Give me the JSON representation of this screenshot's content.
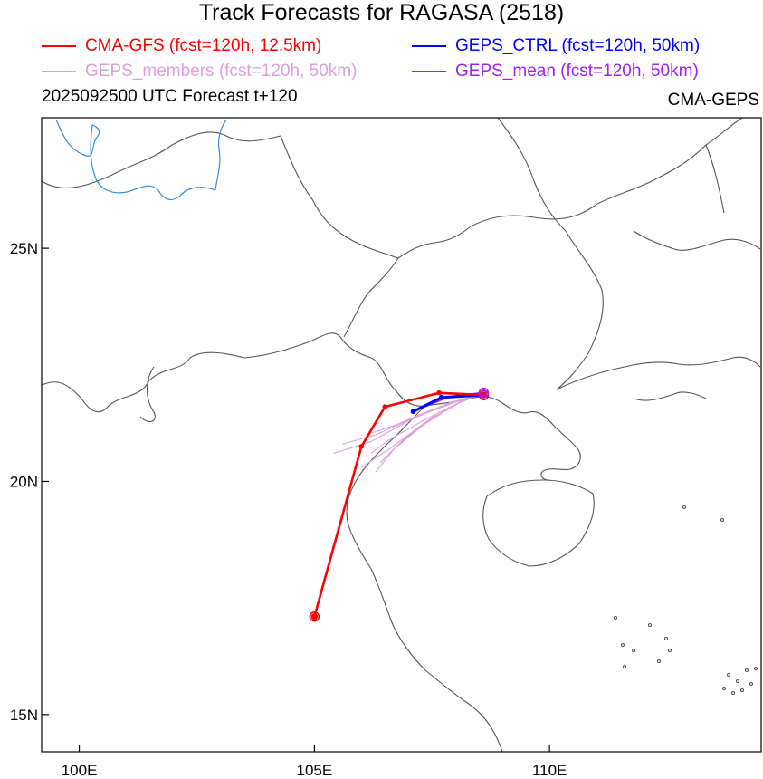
{
  "title": "Track Forecasts for RAGASA (2518)",
  "subtitle": "2025092500 UTC Forecast t+120",
  "model_label": "CMA-GEPS",
  "legend": [
    {
      "label": "CMA-GFS (fcst=120h, 12.5km)",
      "color": "#ff0000"
    },
    {
      "label": "GEPS_CTRL (fcst=120h, 50km)",
      "color": "#0000ff"
    },
    {
      "label": "GEPS_members (fcst=120h, 50km)",
      "color": "#dda0dd"
    },
    {
      "label": "GEPS_mean (fcst=120h, 50km)",
      "color": "#a020f0"
    }
  ],
  "axes": {
    "lon_ticks": [
      "100E",
      "105E",
      "110E"
    ],
    "lat_ticks": [
      "25N",
      "20N",
      "15N"
    ]
  },
  "chart_data": {
    "type": "map",
    "lon_range": [
      99.2,
      114.5
    ],
    "lat_range": [
      14.2,
      27.8
    ],
    "tracks": {
      "cma_gfs": [
        [
          105.0,
          17.1
        ],
        [
          106.0,
          20.75
        ],
        [
          106.5,
          21.6
        ],
        [
          107.65,
          21.9
        ],
        [
          108.6,
          21.85
        ]
      ],
      "geps_ctrl": [
        [
          107.1,
          21.5
        ],
        [
          107.7,
          21.8
        ],
        [
          108.55,
          21.85
        ]
      ],
      "geps_mean": [
        [
          107.2,
          21.55
        ],
        [
          107.8,
          21.8
        ],
        [
          108.6,
          21.9
        ]
      ],
      "geps_members": [
        [
          [
            106.2,
            20.6
          ],
          [
            106.6,
            20.9
          ],
          [
            107.3,
            21.3
          ],
          [
            108.1,
            21.7
          ],
          [
            108.6,
            21.9
          ]
        ],
        [
          [
            106.4,
            20.4
          ],
          [
            106.8,
            20.8
          ],
          [
            107.5,
            21.35
          ],
          [
            108.2,
            21.75
          ],
          [
            108.65,
            21.95
          ]
        ],
        [
          [
            105.6,
            20.8
          ],
          [
            106.3,
            21.0
          ],
          [
            107.2,
            21.4
          ],
          [
            108.0,
            21.7
          ],
          [
            108.55,
            21.85
          ]
        ],
        [
          [
            106.5,
            20.5
          ],
          [
            106.9,
            20.9
          ],
          [
            107.6,
            21.45
          ],
          [
            108.3,
            21.8
          ],
          [
            108.7,
            21.9
          ]
        ],
        [
          [
            106.1,
            21.0
          ],
          [
            106.7,
            21.2
          ],
          [
            107.4,
            21.5
          ],
          [
            108.1,
            21.75
          ],
          [
            108.6,
            21.88
          ]
        ],
        [
          [
            105.4,
            20.6
          ],
          [
            106.2,
            20.85
          ],
          [
            107.0,
            21.3
          ],
          [
            107.9,
            21.7
          ],
          [
            108.5,
            21.85
          ]
        ],
        [
          [
            106.3,
            20.2
          ],
          [
            106.7,
            20.7
          ],
          [
            107.3,
            21.2
          ],
          [
            108.0,
            21.65
          ],
          [
            108.6,
            21.9
          ]
        ],
        [
          [
            106.0,
            20.3
          ],
          [
            106.6,
            20.7
          ],
          [
            107.4,
            21.3
          ],
          [
            108.2,
            21.75
          ],
          [
            108.7,
            21.95
          ]
        ]
      ]
    }
  }
}
